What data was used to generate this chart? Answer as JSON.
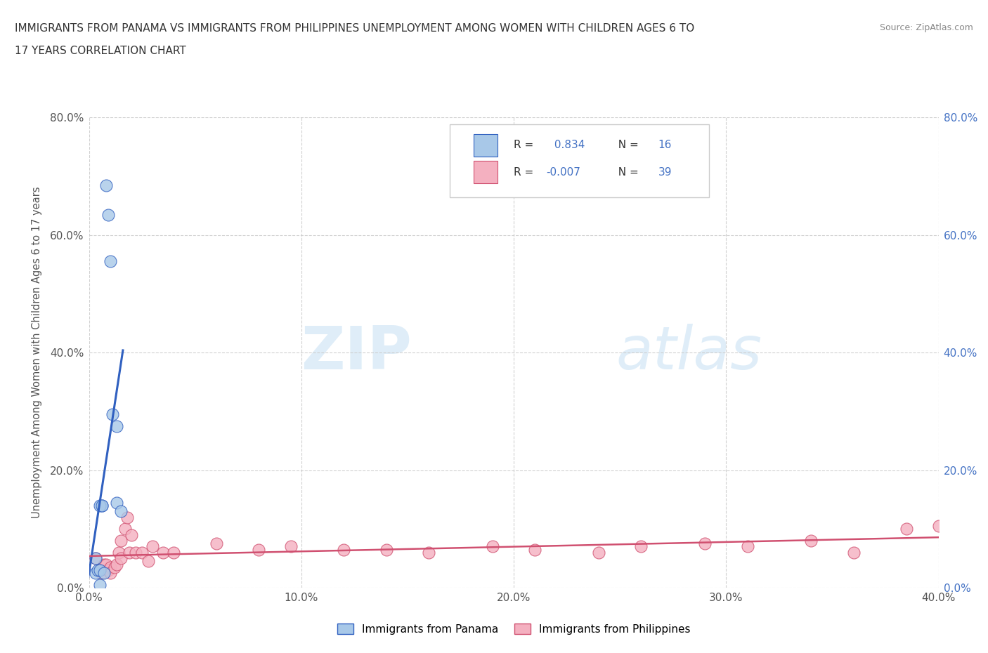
{
  "title_line1": "IMMIGRANTS FROM PANAMA VS IMMIGRANTS FROM PHILIPPINES UNEMPLOYMENT AMONG WOMEN WITH CHILDREN AGES 6 TO",
  "title_line2": "17 YEARS CORRELATION CHART",
  "source": "Source: ZipAtlas.com",
  "ylabel": "Unemployment Among Women with Children Ages 6 to 17 years",
  "legend_bottom": [
    "Immigrants from Panama",
    "Immigrants from Philippines"
  ],
  "r_panama": 0.834,
  "n_panama": 16,
  "r_philippines": -0.007,
  "n_philippines": 39,
  "xlim": [
    0.0,
    0.4
  ],
  "ylim": [
    0.0,
    0.8
  ],
  "xticks": [
    0.0,
    0.1,
    0.2,
    0.3,
    0.4
  ],
  "yticks": [
    0.0,
    0.2,
    0.4,
    0.6,
    0.8
  ],
  "xtick_labels": [
    "0.0%",
    "10.0%",
    "20.0%",
    "30.0%",
    "40.0%"
  ],
  "ytick_labels_left": [
    "0.0%",
    "20.0%",
    "40.0%",
    "60.0%",
    "80.0%"
  ],
  "ytick_labels_right": [
    "0.0%",
    "20.0%",
    "40.0%",
    "60.0%",
    "80.0%"
  ],
  "panama_x": [
    0.003,
    0.008,
    0.009,
    0.01,
    0.011,
    0.013,
    0.013,
    0.015,
    0.003,
    0.004,
    0.005,
    0.006,
    0.005,
    0.006,
    0.007,
    0.005
  ],
  "panama_y": [
    0.025,
    0.685,
    0.635,
    0.555,
    0.295,
    0.275,
    0.145,
    0.13,
    0.05,
    0.03,
    0.03,
    0.14,
    0.14,
    0.14,
    0.025,
    0.005
  ],
  "philippines_x": [
    0.003,
    0.005,
    0.006,
    0.007,
    0.008,
    0.009,
    0.01,
    0.01,
    0.012,
    0.013,
    0.014,
    0.015,
    0.015,
    0.017,
    0.018,
    0.019,
    0.02,
    0.022,
    0.025,
    0.028,
    0.03,
    0.035,
    0.04,
    0.06,
    0.08,
    0.095,
    0.12,
    0.14,
    0.16,
    0.19,
    0.21,
    0.24,
    0.26,
    0.29,
    0.31,
    0.34,
    0.36,
    0.385,
    0.4
  ],
  "philippines_y": [
    0.05,
    0.03,
    0.025,
    0.04,
    0.04,
    0.03,
    0.035,
    0.025,
    0.035,
    0.04,
    0.06,
    0.08,
    0.05,
    0.1,
    0.12,
    0.06,
    0.09,
    0.06,
    0.06,
    0.045,
    0.07,
    0.06,
    0.06,
    0.075,
    0.065,
    0.07,
    0.065,
    0.065,
    0.06,
    0.07,
    0.065,
    0.06,
    0.07,
    0.075,
    0.07,
    0.08,
    0.06,
    0.1,
    0.105
  ],
  "panama_color": "#a8c8e8",
  "panama_line_color": "#3060c0",
  "philippines_color": "#f4b0c0",
  "philippines_line_color": "#d05070",
  "watermark_zip": "ZIP",
  "watermark_atlas": "atlas",
  "background_color": "#ffffff",
  "grid_color": "#cccccc"
}
